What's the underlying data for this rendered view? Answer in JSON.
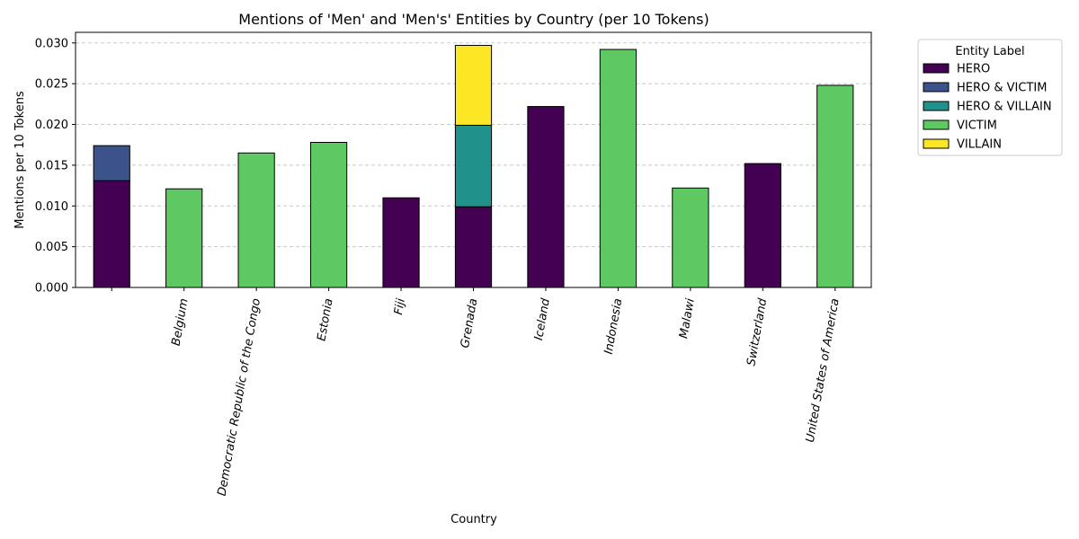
{
  "chart_data": {
    "type": "bar",
    "stacked": true,
    "title": "Mentions of 'Men' and 'Men's' Entities by Country (per 10 Tokens)",
    "xlabel": "Country",
    "ylabel": "Mentions per 10 Tokens",
    "ylim": [
      0,
      0.0313
    ],
    "yticks": [
      "0.000",
      "0.005",
      "0.010",
      "0.015",
      "0.020",
      "0.025",
      "0.030"
    ],
    "ytick_values": [
      0,
      0.005,
      0.01,
      0.015,
      0.02,
      0.025,
      0.03
    ],
    "grid": "y-dashed",
    "categories": [
      "",
      "Belgium",
      "Democratic Republic of the Congo",
      "Estonia",
      "Fiji",
      "Grenada",
      "Iceland",
      "Indonesia",
      "Malawi",
      "Switzerland",
      "United States of America"
    ],
    "series": [
      {
        "name": "HERO",
        "color": "#440154",
        "values": [
          0.0131,
          0,
          0,
          0,
          0.011,
          0.0099,
          0.0222,
          0,
          0,
          0.0152,
          0
        ]
      },
      {
        "name": "HERO & VICTIM",
        "color": "#3b528b",
        "values": [
          0.0043,
          0,
          0,
          0,
          0,
          0,
          0,
          0,
          0,
          0,
          0
        ]
      },
      {
        "name": "HERO & VILLAIN",
        "color": "#21918c",
        "values": [
          0,
          0,
          0,
          0,
          0,
          0.01,
          0,
          0,
          0,
          0,
          0
        ]
      },
      {
        "name": "VICTIM",
        "color": "#5ec962",
        "values": [
          0,
          0.0121,
          0.0165,
          0.0178,
          0,
          0,
          0,
          0.0292,
          0.0122,
          0,
          0.0248
        ]
      },
      {
        "name": "VILLAIN",
        "color": "#fde725",
        "values": [
          0,
          0,
          0,
          0,
          0,
          0.0098,
          0,
          0,
          0,
          0,
          0
        ]
      }
    ],
    "legend": {
      "title": "Entity Label",
      "placement": "outside-top-right"
    }
  }
}
